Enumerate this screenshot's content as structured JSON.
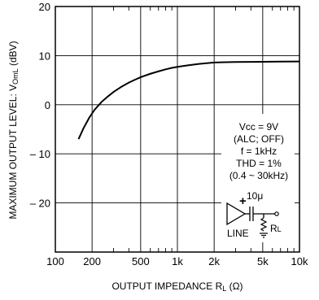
{
  "chart_data": {
    "type": "line",
    "title": "",
    "xlabel": "OUTPUT  IMPEDANCE  R",
    "xlabel_sub": "L",
    "xlabel_unit": " (Ω)",
    "ylabel": "MAXIMUM  OUTPUT  LEVEL:  V",
    "ylabel_sub": "OmL",
    "ylabel_unit": " (dBV)",
    "x_scale": "log",
    "xlim": [
      100,
      10000
    ],
    "ylim": [
      -30,
      20
    ],
    "grid": true,
    "x_ticks": [
      {
        "value": 100,
        "label": "100"
      },
      {
        "value": 200,
        "label": "200"
      },
      {
        "value": 500,
        "label": "500"
      },
      {
        "value": 1000,
        "label": "1k"
      },
      {
        "value": 2000,
        "label": "2k"
      },
      {
        "value": 5000,
        "label": "5k"
      },
      {
        "value": 10000,
        "label": "10k"
      }
    ],
    "x_minor_ticks": [
      300,
      400,
      600,
      700,
      800,
      900,
      3000,
      4000,
      6000,
      7000,
      8000,
      9000
    ],
    "y_ticks": [
      {
        "value": 20,
        "label": "20"
      },
      {
        "value": 10,
        "label": "10"
      },
      {
        "value": 0,
        "label": "0"
      },
      {
        "value": -10,
        "label": "– 10"
      },
      {
        "value": -20,
        "label": "– 20"
      },
      {
        "value": -30,
        "label": ""
      }
    ],
    "series": [
      {
        "x": [
          155,
          170,
          190,
          210,
          240,
          270,
          300,
          350,
          400,
          450,
          500,
          600,
          700,
          800,
          900,
          1000,
          1200,
          1500,
          1800,
          2000,
          2500,
          3000,
          4000,
          5000,
          7000,
          10000
        ],
        "y": [
          -7.0,
          -4.8,
          -2.6,
          -1.0,
          0.6,
          1.7,
          2.6,
          3.7,
          4.5,
          5.1,
          5.6,
          6.3,
          6.8,
          7.2,
          7.5,
          7.7,
          8.0,
          8.3,
          8.5,
          8.6,
          8.65,
          8.7,
          8.72,
          8.75,
          8.78,
          8.8
        ]
      }
    ],
    "annotations": {
      "vcc": "Vcc = 9V",
      "alc": "(ALC; OFF)",
      "freq": "f = 1kHz",
      "thd": "THD = 1%",
      "band": "(0.4 ~ 30kHz)",
      "cap": "10μ",
      "line": "LINE",
      "rl": "RL"
    }
  }
}
